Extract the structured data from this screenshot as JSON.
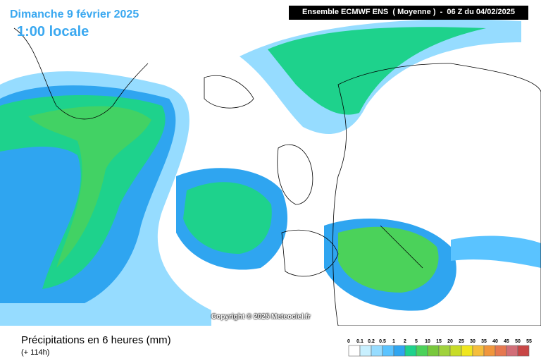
{
  "header": {
    "date": "Dimanche 9 février 2025",
    "time": "1:00 locale",
    "model": "Ensemble ECMWF ENS  ( Moyenne )  -  06 Z du 04/02/2025"
  },
  "copyright": "Copyright © 2025 Meteociel.fr",
  "footer": {
    "title": "Précipitations en 6 heures (mm)",
    "lead": "(+ 114h)"
  },
  "legend": {
    "labels": [
      "0",
      "0.1",
      "0.2",
      "0.5",
      "1",
      "2",
      "5",
      "10",
      "15",
      "20",
      "25",
      "30",
      "35",
      "40",
      "45",
      "50",
      "55"
    ],
    "colors": [
      "#ffffff",
      "#c8f0ff",
      "#96dcff",
      "#5ac3ff",
      "#2fa5f0",
      "#1ed28c",
      "#4bd25a",
      "#78c83c",
      "#a0d23c",
      "#c8dc28",
      "#f0e61e",
      "#f5be3c",
      "#f0963c",
      "#e67850",
      "#d26e78",
      "#c84646"
    ]
  }
}
